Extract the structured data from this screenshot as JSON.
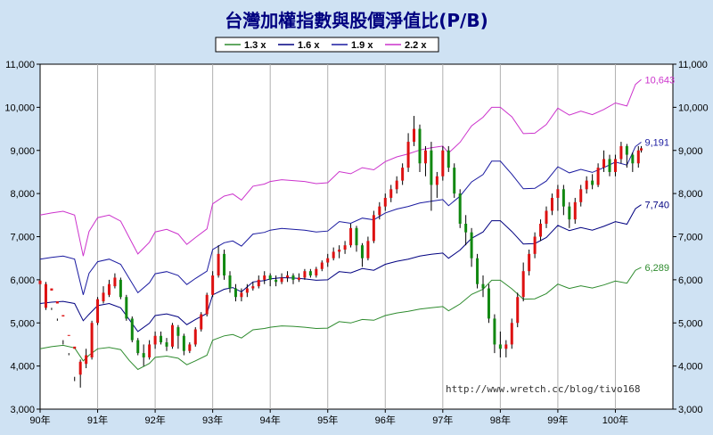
{
  "chart_data": {
    "type": "line",
    "title": "台灣加權指數與股價淨值比(P/B)",
    "ylim": [
      3000,
      11000
    ],
    "yticks": [
      "3,000",
      "4,000",
      "5,000",
      "6,000",
      "7,000",
      "8,000",
      "9,000",
      "10,000",
      "11,000"
    ],
    "yticks_values": [
      3000,
      4000,
      5000,
      6000,
      7000,
      8000,
      9000,
      10000,
      11000
    ],
    "x_range": [
      90,
      101
    ],
    "xticks": [
      "90年",
      "91年",
      "92年",
      "93年",
      "94年",
      "95年",
      "96年",
      "97年",
      "98年",
      "99年",
      "100年"
    ],
    "xticks_values": [
      90,
      91,
      92,
      93,
      94,
      95,
      96,
      97,
      98,
      99,
      100
    ],
    "grid": "vertical",
    "legend_position": "top",
    "watermark": "http://www.wretch.cc/blog/tivo168",
    "series": [
      {
        "name": "1.3 x",
        "color": "#2e8b2e",
        "end_label": "6,289",
        "x": [
          90.0,
          90.2,
          90.4,
          90.6,
          90.75,
          90.85,
          91.0,
          91.2,
          91.4,
          91.55,
          91.7,
          91.9,
          92.0,
          92.2,
          92.4,
          92.55,
          92.7,
          92.9,
          93.0,
          93.2,
          93.35,
          93.5,
          93.7,
          93.9,
          94.0,
          94.2,
          94.4,
          94.6,
          94.8,
          95.0,
          95.2,
          95.4,
          95.6,
          95.8,
          96.0,
          96.2,
          96.4,
          96.6,
          96.8,
          97.0,
          97.1,
          97.3,
          97.5,
          97.7,
          97.85,
          98.0,
          98.2,
          98.4,
          98.6,
          98.8,
          99.0,
          99.2,
          99.4,
          99.6,
          99.8,
          100.0,
          100.2,
          100.35,
          100.45
        ],
        "values": [
          4400,
          4450,
          4480,
          4420,
          4120,
          4250,
          4400,
          4430,
          4380,
          4130,
          3920,
          4060,
          4200,
          4230,
          4180,
          4030,
          4120,
          4250,
          4600,
          4700,
          4730,
          4650,
          4840,
          4870,
          4900,
          4930,
          4920,
          4900,
          4870,
          4880,
          5030,
          5000,
          5080,
          5060,
          5170,
          5230,
          5270,
          5320,
          5350,
          5380,
          5280,
          5440,
          5660,
          5780,
          5990,
          5990,
          5790,
          5550,
          5560,
          5680,
          5900,
          5800,
          5860,
          5810,
          5880,
          5970,
          5920,
          6220,
          6289
        ]
      },
      {
        "name": "1.6 x",
        "color": "#000080",
        "end_label": "7,740",
        "x": [
          90.0,
          90.2,
          90.4,
          90.6,
          90.75,
          90.85,
          91.0,
          91.2,
          91.4,
          91.55,
          91.7,
          91.9,
          92.0,
          92.2,
          92.4,
          92.55,
          92.7,
          92.9,
          93.0,
          93.2,
          93.35,
          93.5,
          93.7,
          93.9,
          94.0,
          94.2,
          94.4,
          94.6,
          94.8,
          95.0,
          95.2,
          95.4,
          95.6,
          95.8,
          96.0,
          96.2,
          96.4,
          96.6,
          96.8,
          97.0,
          97.1,
          97.3,
          97.5,
          97.7,
          97.85,
          98.0,
          98.2,
          98.4,
          98.6,
          98.8,
          99.0,
          99.2,
          99.4,
          99.6,
          99.8,
          100.0,
          100.2,
          100.35,
          100.45
        ],
        "values": [
          5450,
          5480,
          5500,
          5450,
          5050,
          5200,
          5400,
          5450,
          5350,
          5080,
          4800,
          4990,
          5170,
          5210,
          5140,
          4960,
          5080,
          5220,
          5650,
          5780,
          5820,
          5720,
          5950,
          5980,
          6020,
          6050,
          6040,
          6020,
          5990,
          6000,
          6190,
          6160,
          6260,
          6220,
          6360,
          6430,
          6480,
          6550,
          6590,
          6620,
          6500,
          6690,
          6960,
          7110,
          7370,
          7370,
          7120,
          6830,
          6840,
          6980,
          7260,
          7140,
          7210,
          7150,
          7240,
          7350,
          7290,
          7650,
          7740
        ]
      },
      {
        "name": "1.9 x",
        "color": "#1a1aa0",
        "end_label": "9,191",
        "x": [
          90.0,
          90.2,
          90.4,
          90.6,
          90.75,
          90.85,
          91.0,
          91.2,
          91.4,
          91.55,
          91.7,
          91.9,
          92.0,
          92.2,
          92.4,
          92.55,
          92.7,
          92.9,
          93.0,
          93.2,
          93.35,
          93.5,
          93.7,
          93.9,
          94.0,
          94.2,
          94.4,
          94.6,
          94.8,
          95.0,
          95.2,
          95.4,
          95.6,
          95.8,
          96.0,
          96.2,
          96.4,
          96.6,
          96.8,
          97.0,
          97.1,
          97.3,
          97.5,
          97.7,
          97.85,
          98.0,
          98.2,
          98.4,
          98.6,
          98.8,
          99.0,
          99.2,
          99.4,
          99.6,
          99.8,
          100.0,
          100.2,
          100.35,
          100.45
        ],
        "values": [
          6480,
          6520,
          6550,
          6480,
          5650,
          6150,
          6420,
          6480,
          6360,
          6030,
          5700,
          5930,
          6140,
          6190,
          6100,
          5890,
          6030,
          6200,
          6700,
          6860,
          6900,
          6780,
          7060,
          7100,
          7150,
          7190,
          7170,
          7150,
          7110,
          7130,
          7350,
          7310,
          7430,
          7390,
          7550,
          7640,
          7700,
          7780,
          7820,
          7860,
          7720,
          7940,
          8270,
          8440,
          8750,
          8750,
          8450,
          8110,
          8120,
          8290,
          8620,
          8480,
          8560,
          8490,
          8600,
          8730,
          8660,
          9090,
          9191
        ]
      },
      {
        "name": "2.2 x",
        "color": "#cc33cc",
        "end_label": "10,643",
        "x": [
          90.0,
          90.2,
          90.4,
          90.6,
          90.75,
          90.85,
          91.0,
          91.2,
          91.4,
          91.55,
          91.7,
          91.9,
          92.0,
          92.2,
          92.4,
          92.55,
          92.7,
          92.9,
          93.0,
          93.2,
          93.35,
          93.5,
          93.7,
          93.9,
          94.0,
          94.2,
          94.4,
          94.6,
          94.8,
          95.0,
          95.2,
          95.4,
          95.6,
          95.8,
          96.0,
          96.2,
          96.4,
          96.6,
          96.8,
          97.0,
          97.1,
          97.3,
          97.5,
          97.7,
          97.85,
          98.0,
          98.2,
          98.4,
          98.6,
          98.8,
          99.0,
          99.2,
          99.4,
          99.6,
          99.8,
          100.0,
          100.2,
          100.35,
          100.45
        ],
        "values": [
          7500,
          7550,
          7590,
          7500,
          6550,
          7120,
          7440,
          7500,
          7360,
          6980,
          6600,
          6870,
          7110,
          7170,
          7060,
          6820,
          6980,
          7180,
          7760,
          7940,
          7990,
          7850,
          8170,
          8220,
          8280,
          8320,
          8300,
          8280,
          8230,
          8250,
          8510,
          8460,
          8600,
          8550,
          8740,
          8850,
          8920,
          9010,
          9060,
          9100,
          8940,
          9190,
          9570,
          9770,
          10000,
          10000,
          9780,
          9390,
          9400,
          9600,
          9980,
          9820,
          9910,
          9830,
          9950,
          10100,
          10030,
          10530,
          10643
        ]
      }
    ],
    "candles": {
      "up_color": "#dd1111",
      "down_color": "#118811",
      "values": [
        [
          90.0,
          5900,
          5980,
          5200,
          4700
        ],
        [
          90.1,
          5350,
          5900,
          5950,
          5300
        ],
        [
          90.2,
          5750,
          5800,
          5350,
          5300
        ],
        [
          90.3,
          5450,
          5500,
          5100,
          5050
        ],
        [
          90.4,
          5150,
          5180,
          4600,
          4500
        ],
        [
          90.5,
          4700,
          4720,
          4300,
          4250
        ],
        [
          90.6,
          4400,
          4450,
          3750,
          3650
        ],
        [
          90.7,
          3800,
          4100,
          4150,
          3500
        ],
        [
          90.8,
          4050,
          4250,
          4400,
          3950
        ],
        [
          90.9,
          4200,
          5000,
          5050,
          4150
        ],
        [
          91.0,
          5000,
          5550,
          5600,
          4950
        ],
        [
          91.1,
          5500,
          5700,
          5850,
          5450
        ],
        [
          91.2,
          5650,
          5900,
          6000,
          5600
        ],
        [
          91.3,
          5850,
          6050,
          6150,
          5800
        ],
        [
          91.4,
          6000,
          5600,
          6050,
          5550
        ],
        [
          91.5,
          5600,
          5100,
          5650,
          5050
        ],
        [
          91.6,
          5100,
          4600,
          5150,
          4550
        ],
        [
          91.7,
          4600,
          4300,
          4650,
          4250
        ],
        [
          91.8,
          4300,
          4200,
          4500,
          4000
        ],
        [
          91.9,
          4200,
          4500,
          4600,
          4150
        ],
        [
          92.0,
          4500,
          4700,
          4800,
          4400
        ],
        [
          92.1,
          4700,
          4550,
          4800,
          4500
        ],
        [
          92.2,
          4550,
          4450,
          4650,
          4350
        ],
        [
          92.3,
          4450,
          4950,
          5000,
          4400
        ],
        [
          92.4,
          4900,
          4700,
          4950,
          4400
        ],
        [
          92.5,
          4700,
          4350,
          4750,
          4250
        ],
        [
          92.6,
          4350,
          4500,
          4550,
          4300
        ],
        [
          92.7,
          4500,
          4850,
          4900,
          4450
        ],
        [
          92.8,
          4850,
          5200,
          5250,
          4800
        ],
        [
          92.9,
          5200,
          5650,
          5700,
          5150
        ],
        [
          93.0,
          5650,
          6100,
          6200,
          5600
        ],
        [
          93.1,
          6100,
          6600,
          6800,
          6050
        ],
        [
          93.2,
          6600,
          6100,
          6700,
          6000
        ],
        [
          93.3,
          6100,
          5800,
          6200,
          5700
        ],
        [
          93.4,
          5800,
          5600,
          5900,
          5500
        ],
        [
          93.5,
          5600,
          5700,
          5800,
          5500
        ],
        [
          93.6,
          5700,
          5800,
          5900,
          5600
        ],
        [
          93.7,
          5800,
          5850,
          5950,
          5750
        ],
        [
          93.8,
          5850,
          6000,
          6100,
          5800
        ],
        [
          93.9,
          6000,
          6100,
          6200,
          5900
        ],
        [
          94.0,
          6100,
          6000,
          6150,
          5850
        ],
        [
          94.1,
          6000,
          5950,
          6100,
          5850
        ],
        [
          94.2,
          5950,
          6050,
          6150,
          5900
        ],
        [
          94.3,
          6050,
          6100,
          6200,
          5950
        ],
        [
          94.4,
          6100,
          6000,
          6150,
          5900
        ],
        [
          94.5,
          6000,
          6050,
          6150,
          5950
        ],
        [
          94.6,
          6050,
          6200,
          6250,
          6000
        ],
        [
          94.7,
          6200,
          6100,
          6250,
          6050
        ],
        [
          94.8,
          6100,
          6250,
          6300,
          6050
        ],
        [
          94.9,
          6250,
          6400,
          6450,
          6200
        ],
        [
          95.0,
          6400,
          6500,
          6600,
          6300
        ],
        [
          95.1,
          6500,
          6650,
          6750,
          6450
        ],
        [
          95.2,
          6650,
          6700,
          6800,
          6500
        ],
        [
          95.3,
          6700,
          6800,
          6900,
          6600
        ],
        [
          95.4,
          6800,
          7200,
          7300,
          6750
        ],
        [
          95.5,
          7200,
          6800,
          7250,
          6650
        ],
        [
          95.6,
          6800,
          6500,
          6850,
          6300
        ],
        [
          95.7,
          6500,
          6900,
          7000,
          6450
        ],
        [
          95.8,
          6900,
          7500,
          7600,
          6850
        ],
        [
          95.9,
          7500,
          7700,
          7800,
          7400
        ],
        [
          96.0,
          7700,
          7900,
          8000,
          7600
        ],
        [
          96.1,
          7900,
          8100,
          8200,
          7800
        ],
        [
          96.2,
          8100,
          8300,
          8400,
          8000
        ],
        [
          96.3,
          8300,
          8600,
          8700,
          8200
        ],
        [
          96.4,
          8600,
          9200,
          9400,
          8500
        ],
        [
          96.5,
          9200,
          9500,
          9800,
          9100
        ],
        [
          96.6,
          9500,
          8700,
          9600,
          8500
        ],
        [
          96.7,
          8700,
          9000,
          9100,
          8400
        ],
        [
          96.8,
          9000,
          8200,
          9200,
          7600
        ],
        [
          96.9,
          8200,
          8400,
          8500,
          7900
        ],
        [
          97.0,
          8400,
          9000,
          9100,
          8300
        ],
        [
          97.1,
          9000,
          8600,
          9100,
          8500
        ],
        [
          97.2,
          8600,
          8000,
          8700,
          7900
        ],
        [
          97.3,
          8000,
          7300,
          8100,
          7200
        ],
        [
          97.4,
          7300,
          7100,
          7500,
          6800
        ],
        [
          97.5,
          7100,
          6500,
          7200,
          6300
        ],
        [
          97.6,
          6500,
          5900,
          6600,
          5800
        ],
        [
          97.7,
          5900,
          5800,
          6100,
          5600
        ],
        [
          97.8,
          5800,
          5100,
          5900,
          5000
        ],
        [
          97.9,
          5100,
          4500,
          5200,
          4300
        ],
        [
          98.0,
          4500,
          4400,
          4800,
          4200
        ],
        [
          98.1,
          4400,
          4500,
          4600,
          4200
        ],
        [
          98.2,
          4500,
          5000,
          5100,
          4400
        ],
        [
          98.3,
          5000,
          5600,
          5700,
          4900
        ],
        [
          98.4,
          5600,
          6200,
          6400,
          5500
        ],
        [
          98.5,
          6200,
          6600,
          6700,
          6100
        ],
        [
          98.6,
          6600,
          7000,
          7100,
          6500
        ],
        [
          98.7,
          7000,
          7300,
          7400,
          6900
        ],
        [
          98.8,
          7300,
          7600,
          7700,
          7200
        ],
        [
          98.9,
          7600,
          7900,
          8000,
          7500
        ],
        [
          99.0,
          7900,
          8100,
          8200,
          7600
        ],
        [
          99.1,
          8100,
          7700,
          8200,
          7500
        ],
        [
          99.2,
          7700,
          7400,
          7800,
          7200
        ],
        [
          99.3,
          7400,
          7800,
          7900,
          7300
        ],
        [
          99.4,
          7800,
          8100,
          8200,
          7700
        ],
        [
          99.5,
          8100,
          8300,
          8400,
          8000
        ],
        [
          99.6,
          8300,
          8200,
          8450,
          8100
        ],
        [
          99.7,
          8200,
          8600,
          8700,
          8150
        ],
        [
          99.8,
          8600,
          8800,
          9000,
          8500
        ],
        [
          99.9,
          8800,
          8500,
          8900,
          8400
        ],
        [
          100.0,
          8500,
          8800,
          8900,
          8400
        ],
        [
          100.1,
          8800,
          9100,
          9200,
          8700
        ],
        [
          100.2,
          9100,
          8900,
          9150,
          8600
        ],
        [
          100.3,
          8900,
          8700,
          8950,
          8500
        ],
        [
          100.4,
          8700,
          9000,
          9100,
          8600
        ],
        [
          100.45,
          9000,
          9050,
          9100,
          8950
        ]
      ]
    }
  }
}
